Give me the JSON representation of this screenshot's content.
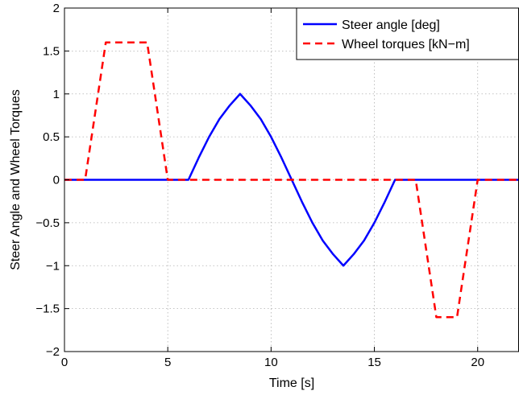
{
  "chart_data": {
    "type": "line",
    "title": "",
    "xlabel": "Time [s]",
    "ylabel": "Steer Angle and Wheel Torques",
    "xlim": [
      0,
      22
    ],
    "ylim": [
      -2,
      2
    ],
    "xticks": [
      0,
      5,
      10,
      15,
      20
    ],
    "yticks": [
      -2,
      -1.5,
      -1,
      -0.5,
      0,
      0.5,
      1,
      1.5,
      2
    ],
    "xtick_labels": [
      "0",
      "5",
      "10",
      "15",
      "20"
    ],
    "ytick_labels": [
      "−2",
      "−1.5",
      "−1",
      "−0.5",
      "0",
      "0.5",
      "1",
      "1.5",
      "2"
    ],
    "grid": true,
    "legend_position": "top-right",
    "series": [
      {
        "name": "Steer angle [deg]",
        "color": "#0000ff",
        "style": "solid",
        "x": [
          0,
          6,
          6.5,
          7,
          7.5,
          8,
          8.5,
          9,
          9.5,
          10,
          10.5,
          11,
          11.5,
          12,
          12.5,
          13,
          13.5,
          14,
          14.5,
          15,
          15.5,
          16,
          22
        ],
        "y": [
          0,
          0,
          0.259,
          0.5,
          0.707,
          0.866,
          1,
          0.866,
          0.707,
          0.5,
          0.259,
          0,
          -0.259,
          -0.5,
          -0.707,
          -0.866,
          -1,
          -0.866,
          -0.707,
          -0.5,
          -0.259,
          0,
          0
        ]
      },
      {
        "name": "Wheel torques [kN−m]",
        "color": "#ff0000",
        "style": "dashed",
        "x": [
          0,
          1,
          2,
          4,
          5,
          17,
          18,
          19,
          20,
          22
        ],
        "y": [
          0,
          0,
          1.6,
          1.6,
          0,
          0,
          -1.6,
          -1.6,
          0,
          0
        ]
      }
    ]
  }
}
